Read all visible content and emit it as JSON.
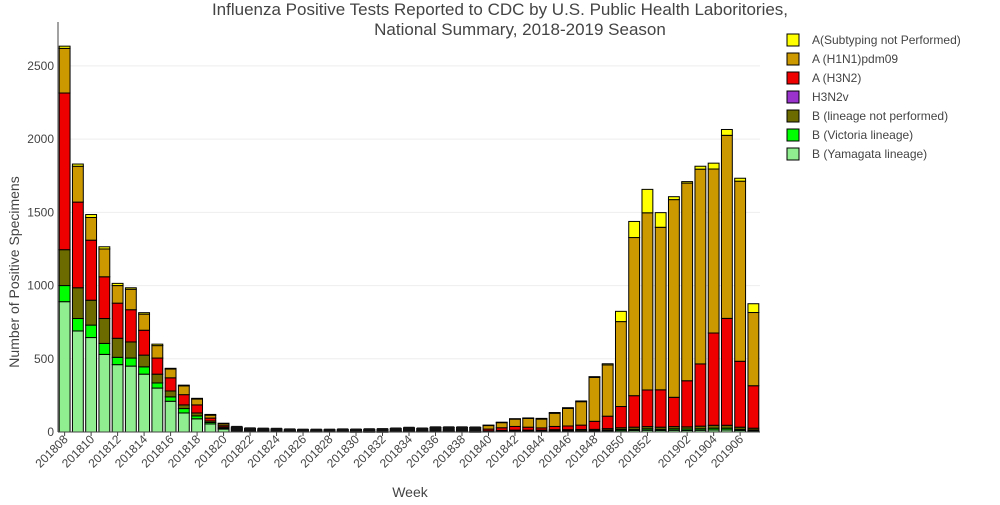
{
  "chart_data": {
    "type": "bar",
    "stacked": true,
    "title_lines": [
      "Influenza Positive Tests Reported to CDC by U.S. Public Health Laboritories,",
      "National Summary, 2018-2019 Season"
    ],
    "xlabel": "Week",
    "ylabel": "Number of Positive Specimens",
    "ylim": [
      0,
      2800
    ],
    "yticks": [
      0,
      500,
      1000,
      1500,
      2000,
      2500
    ],
    "categories": [
      "201808",
      "201809",
      "201810",
      "201811",
      "201812",
      "201813",
      "201814",
      "201815",
      "201816",
      "201817",
      "201818",
      "201819",
      "201820",
      "201821",
      "201822",
      "201823",
      "201824",
      "201825",
      "201826",
      "201827",
      "201828",
      "201829",
      "201830",
      "201831",
      "201832",
      "201833",
      "201834",
      "201835",
      "201836",
      "201837",
      "201838",
      "201839",
      "201840",
      "201841",
      "201842",
      "201843",
      "201844",
      "201845",
      "201846",
      "201847",
      "201848",
      "201849",
      "201850",
      "201851",
      "201852",
      "201853",
      "201901",
      "201902",
      "201903",
      "201904",
      "201905",
      "201906",
      "201907"
    ],
    "tick_labels": [
      "201808",
      "201810",
      "201812",
      "201814",
      "201816",
      "201818",
      "201820",
      "201822",
      "201824",
      "201826",
      "201828",
      "201830",
      "201832",
      "201834",
      "201836",
      "201838",
      "201840",
      "201842",
      "201844",
      "201846",
      "201848",
      "201850",
      "201852",
      "201902",
      "201904",
      "201906"
    ],
    "series": [
      {
        "name": "B (Yamagata lineage)",
        "color": "#90ee90",
        "values": [
          890,
          690,
          645,
          530,
          460,
          450,
          395,
          300,
          210,
          130,
          90,
          55,
          20,
          12,
          8,
          6,
          5,
          4,
          3,
          3,
          3,
          3,
          2,
          2,
          2,
          3,
          3,
          3,
          3,
          3,
          3,
          2,
          3,
          4,
          5,
          5,
          5,
          6,
          6,
          6,
          7,
          8,
          9,
          10,
          12,
          10,
          12,
          10,
          12,
          14,
          14,
          10,
          8
        ]
      },
      {
        "name": "B (Victoria lineage)",
        "color": "#00ff00",
        "values": [
          110,
          85,
          85,
          75,
          50,
          55,
          50,
          35,
          30,
          30,
          20,
          10,
          5,
          3,
          2,
          2,
          2,
          1,
          1,
          1,
          1,
          1,
          1,
          1,
          1,
          1,
          1,
          1,
          1,
          1,
          1,
          1,
          1,
          2,
          2,
          2,
          2,
          3,
          3,
          3,
          3,
          5,
          8,
          8,
          10,
          8,
          10,
          10,
          10,
          12,
          12,
          8,
          6
        ]
      },
      {
        "name": "B (lineage not performed)",
        "color": "#6b6b00",
        "values": [
          245,
          210,
          170,
          170,
          130,
          110,
          80,
          60,
          40,
          25,
          20,
          10,
          8,
          5,
          4,
          4,
          4,
          3,
          3,
          3,
          3,
          3,
          3,
          3,
          3,
          3,
          3,
          3,
          3,
          3,
          3,
          3,
          4,
          5,
          6,
          6,
          6,
          7,
          7,
          8,
          8,
          10,
          12,
          15,
          15,
          15,
          15,
          15,
          18,
          20,
          20,
          15,
          12
        ]
      },
      {
        "name": "H3N2v",
        "color": "#9a32cd",
        "values": [
          0,
          0,
          0,
          0,
          0,
          0,
          0,
          0,
          0,
          0,
          0,
          0,
          0,
          0,
          0,
          0,
          0,
          0,
          0,
          0,
          0,
          0,
          0,
          0,
          0,
          0,
          0,
          0,
          0,
          0,
          0,
          0,
          0,
          0,
          0,
          0,
          0,
          0,
          0,
          0,
          0,
          0,
          0,
          0,
          0,
          0,
          0,
          0,
          0,
          0,
          0,
          0,
          0
        ]
      },
      {
        "name": "A (H3N2)",
        "color": "#ee0000",
        "values": [
          1070,
          585,
          410,
          285,
          240,
          220,
          170,
          110,
          90,
          70,
          55,
          20,
          10,
          4,
          2,
          2,
          2,
          2,
          2,
          2,
          2,
          3,
          3,
          4,
          5,
          5,
          8,
          5,
          8,
          8,
          8,
          8,
          12,
          18,
          25,
          20,
          15,
          22,
          25,
          30,
          55,
          85,
          145,
          215,
          250,
          255,
          200,
          315,
          425,
          630,
          730,
          450,
          290
        ]
      },
      {
        "name": "A (H1N1)pdm09",
        "color": "#cc9900",
        "values": [
          305,
          245,
          155,
          190,
          120,
          140,
          110,
          85,
          60,
          60,
          40,
          20,
          12,
          8,
          6,
          6,
          6,
          6,
          5,
          5,
          5,
          6,
          6,
          7,
          7,
          10,
          12,
          10,
          15,
          15,
          15,
          15,
          25,
          35,
          50,
          60,
          60,
          90,
          120,
          160,
          300,
          350,
          580,
          1080,
          1210,
          1110,
          1350,
          1350,
          1330,
          1120,
          1250,
          1230,
          500
        ]
      },
      {
        "name": "A(Subtyping not Performed)",
        "color": "#ffff00",
        "values": [
          15,
          15,
          20,
          15,
          15,
          10,
          10,
          10,
          5,
          5,
          5,
          5,
          5,
          3,
          3,
          3,
          3,
          2,
          2,
          2,
          2,
          2,
          2,
          2,
          2,
          2,
          2,
          2,
          2,
          2,
          2,
          2,
          2,
          3,
          3,
          3,
          5,
          5,
          5,
          5,
          5,
          8,
          70,
          110,
          160,
          100,
          20,
          10,
          20,
          40,
          40,
          20,
          60
        ]
      }
    ],
    "legend_order": [
      "A(Subtyping not Performed)",
      "A (H1N1)pdm09",
      "A (H3N2)",
      "H3N2v",
      "B (lineage not performed)",
      "B (Victoria lineage)",
      "B (Yamagata lineage)"
    ],
    "legend_position": "top-right",
    "bar_outline_color": "#000000"
  }
}
